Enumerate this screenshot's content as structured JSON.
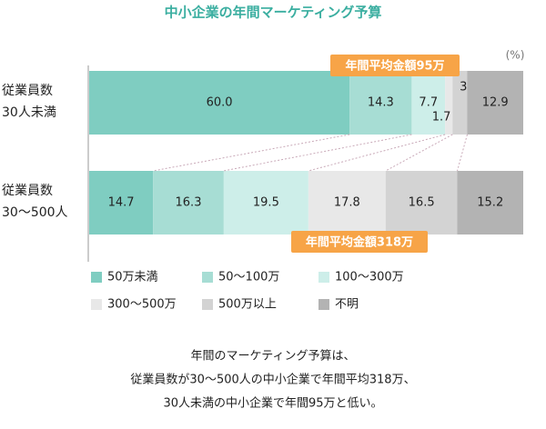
{
  "chart_data": {
    "type": "stacked-bar-horizontal",
    "title": "中小企業の年間マーケティング予算",
    "unit_label": "(%)",
    "categories": [
      [
        "従業員数",
        "30人未満"
      ],
      [
        "従業員数",
        "30〜500人"
      ]
    ],
    "series": [
      {
        "name": "50万未満",
        "color": "#7fcdc1",
        "values": [
          60.0,
          14.7
        ],
        "value_labels": [
          "60.0",
          "14.7"
        ]
      },
      {
        "name": "50〜100万",
        "color": "#a7ddd4",
        "values": [
          14.3,
          16.3
        ]
      },
      {
        "name": "100〜300万",
        "color": "#cdeee9",
        "values": [
          7.7,
          19.5
        ]
      },
      {
        "name": "300〜500万",
        "color": "#e8e8e8",
        "values": [
          1.7,
          17.8
        ]
      },
      {
        "name": "500万以上",
        "color": "#d3d3d3",
        "values": [
          3.4,
          16.5
        ]
      },
      {
        "name": "不明",
        "color": "#b3b3b3",
        "values": [
          12.9,
          15.2
        ]
      }
    ],
    "annotations": [
      "年間平均金額95万",
      "年間平均金額318万"
    ],
    "note": [
      "年間のマーケティング予算は、",
      "従業員数が30〜500人の中小企業で年間平均318万、",
      "30人未満の中小企業で年間95万と低い。"
    ]
  }
}
